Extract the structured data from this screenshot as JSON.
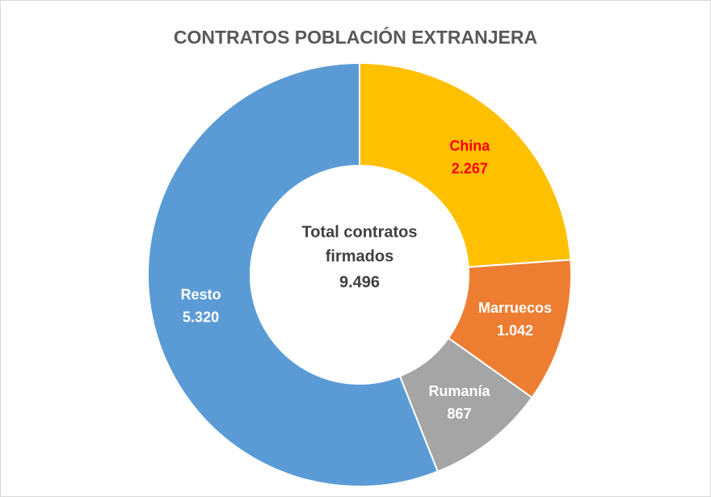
{
  "chart_data": {
    "type": "donut",
    "title": "CONTRATOS POBLACIÓN EXTRANJERA",
    "categories": [
      "China",
      "Marruecos",
      "Rumanía",
      "Resto"
    ],
    "values": [
      2267,
      1042,
      867,
      5320
    ],
    "value_labels": [
      "2.267",
      "1.042",
      "867",
      "5.320"
    ],
    "colors": [
      "#FFC000",
      "#ED7D31",
      "#A5A5A5",
      "#5B9BD5"
    ],
    "label_colors": [
      "#FF0000",
      "#FFFFFF",
      "#FFFFFF",
      "#FFFFFF"
    ],
    "center_title": [
      "Total contratos",
      "firmados"
    ],
    "center_total": "9.496"
  }
}
